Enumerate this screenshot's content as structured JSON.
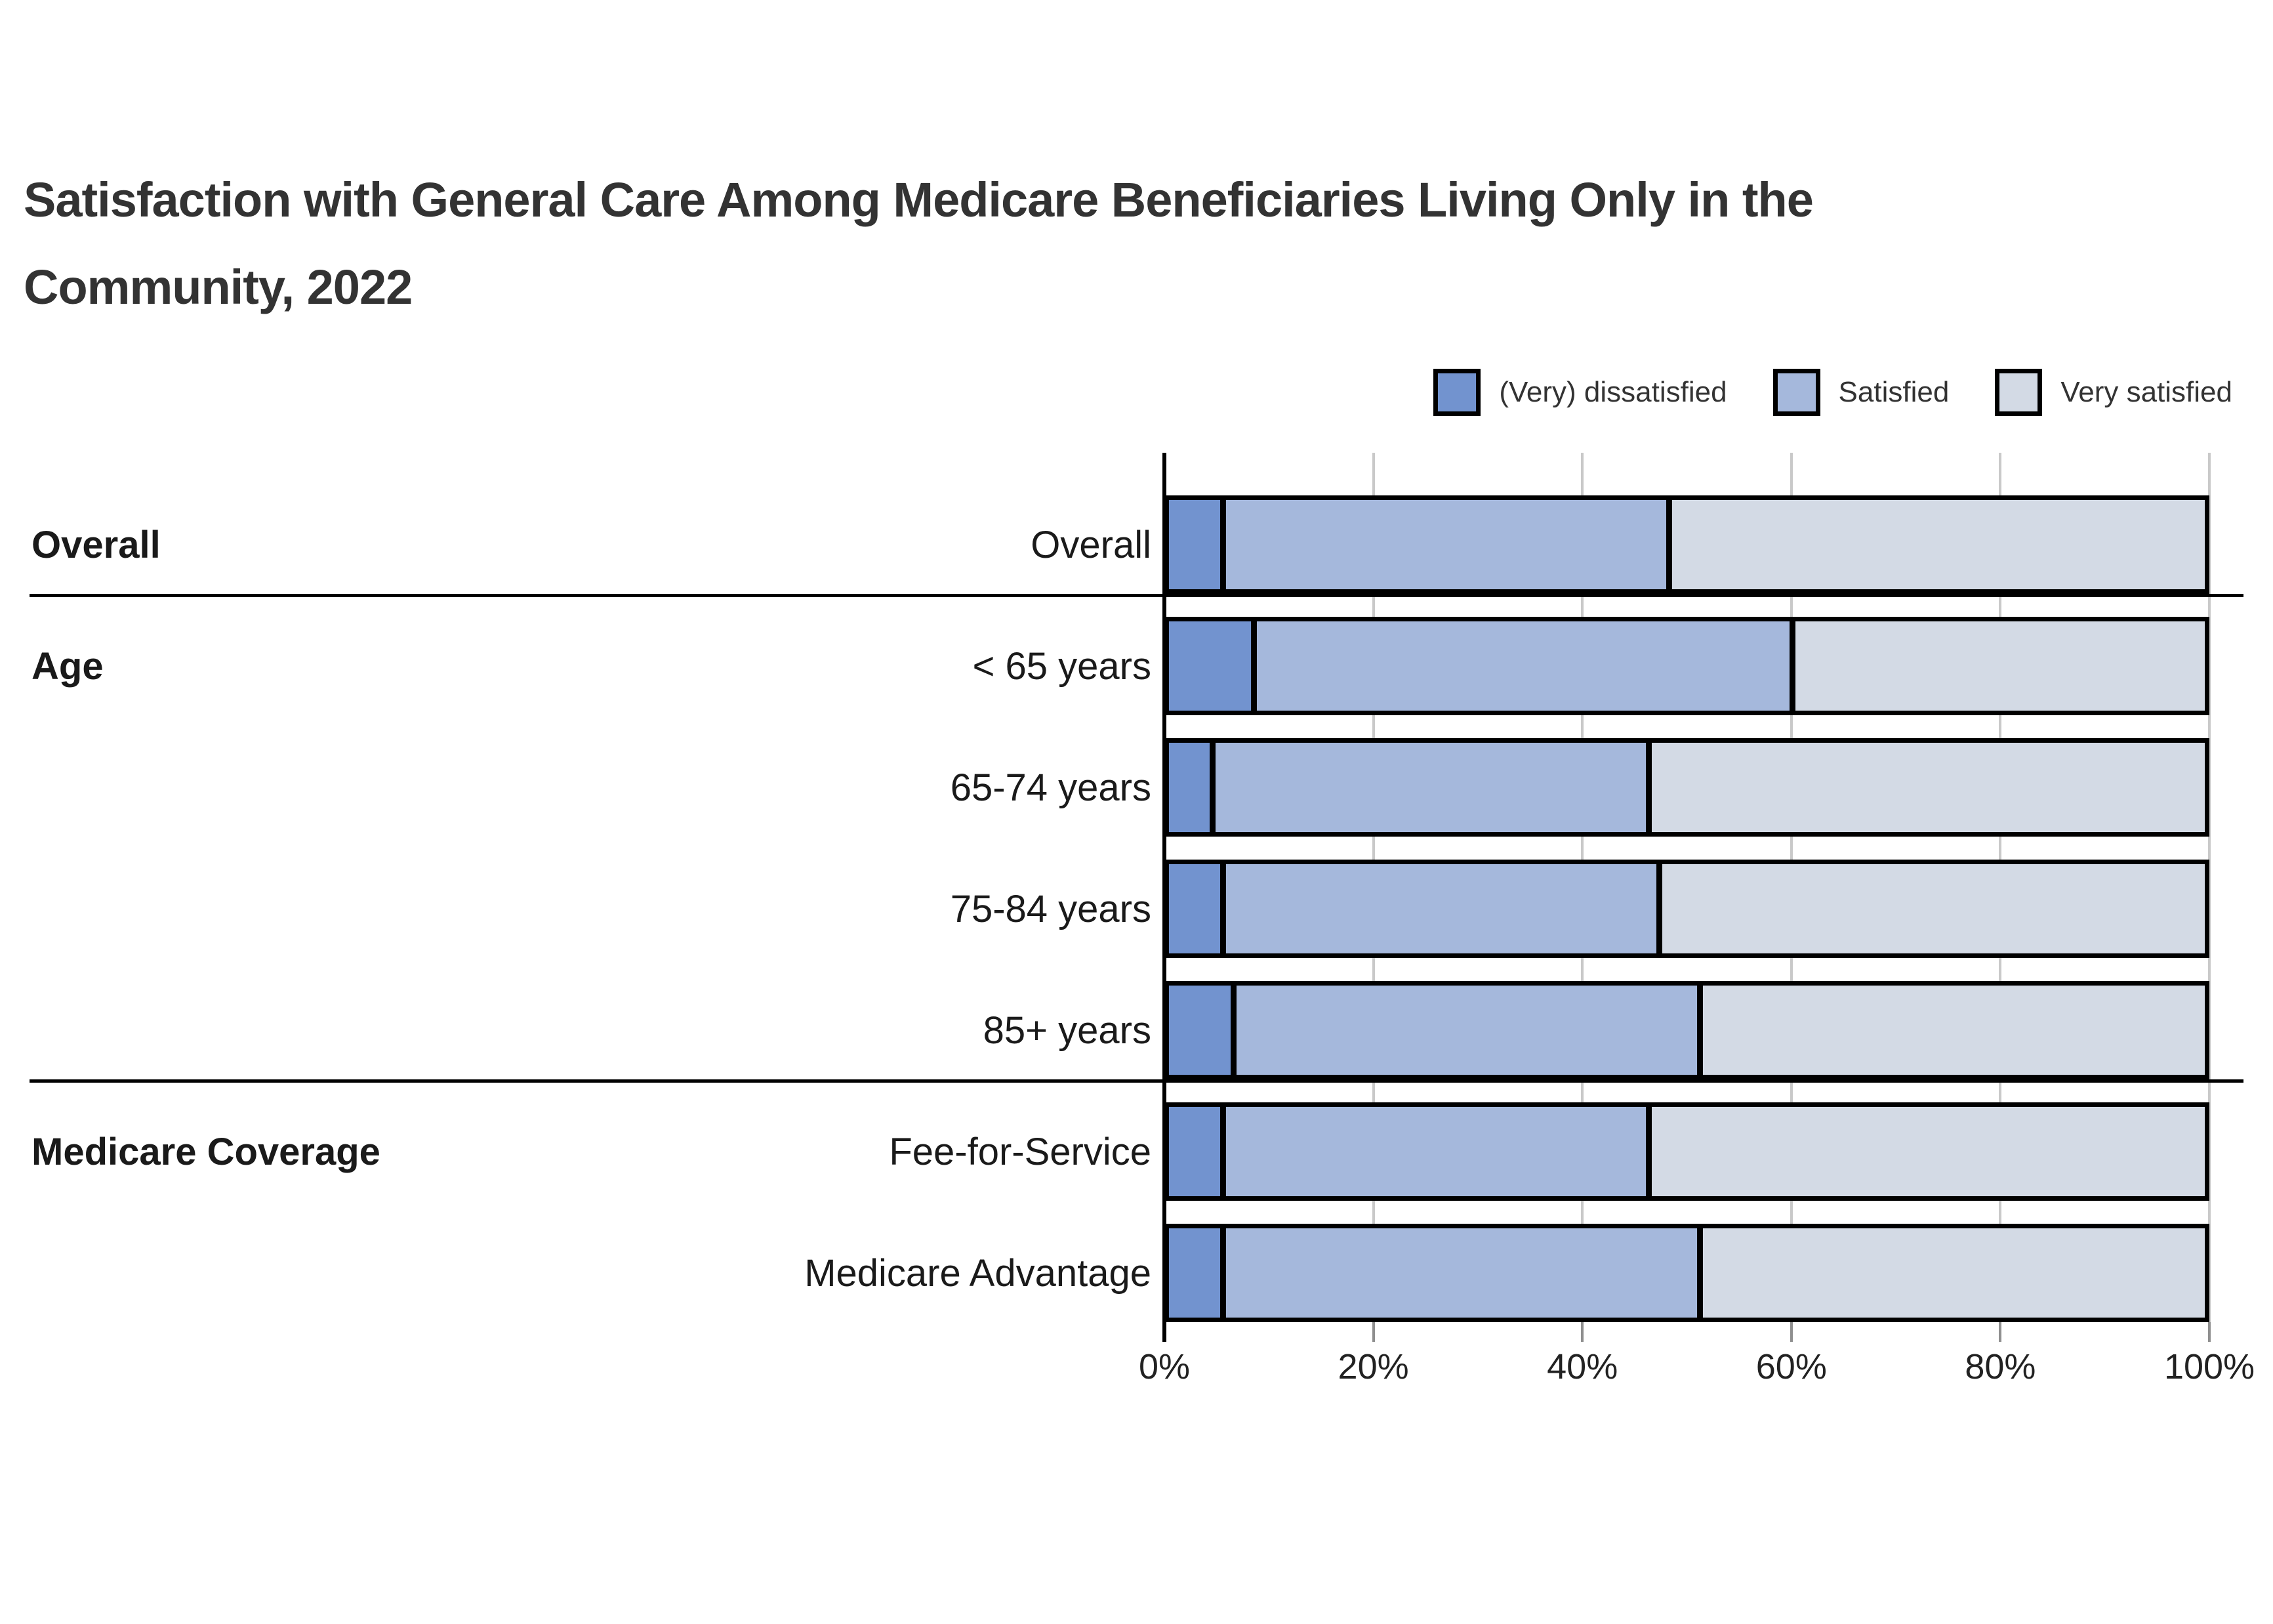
{
  "title": "Satisfaction with General Care Among Medicare Beneficiaries Living Only in the Community, 2022",
  "colors": {
    "dissatisfied": "#7293cf",
    "satisfied": "#a5b8dc",
    "very_satisfied": "#d3dae5",
    "bar_border": "#000000",
    "gridline": "#c9c9c9",
    "text": "#333333"
  },
  "legend": [
    {
      "label": "(Very) dissatisfied",
      "color": "#7293cf"
    },
    {
      "label": "Satisfied",
      "color": "#a5b8dc"
    },
    {
      "label": "Very satisfied",
      "color": "#d3dae5"
    }
  ],
  "chart_data": {
    "type": "bar",
    "orientation": "horizontal",
    "stacked": true,
    "unit": "percent",
    "title": "Satisfaction with General Care Among Medicare Beneficiaries Living Only in the Community, 2022",
    "xlim": [
      0,
      100
    ],
    "x_ticks": [
      "0%",
      "20%",
      "40%",
      "60%",
      "80%",
      "100%"
    ],
    "x_tick_values": [
      0,
      20,
      40,
      60,
      80,
      100
    ],
    "grid": true,
    "legend_position": "top-right",
    "categories": [
      "Overall",
      "< 65 years",
      "65-74 years",
      "75-84 years",
      "85+ years",
      "Fee-for-Service",
      "Medicare Advantage"
    ],
    "groups": [
      {
        "label": "Overall",
        "start_row": 0,
        "rows": [
          "Overall"
        ]
      },
      {
        "label": "Age",
        "start_row": 1,
        "rows": [
          "< 65 years",
          "65-74 years",
          "75-84 years",
          "85+ years"
        ]
      },
      {
        "label": "Medicare Coverage",
        "start_row": 5,
        "rows": [
          "Fee-for-Service",
          "Medicare Advantage"
        ]
      }
    ],
    "series": [
      {
        "name": "(Very) dissatisfied",
        "color": "#7293cf",
        "values": [
          5,
          8,
          4,
          5,
          6,
          5,
          5
        ]
      },
      {
        "name": "Satisfied",
        "color": "#a5b8dc",
        "values": [
          43,
          52,
          42,
          42,
          45,
          41,
          46
        ]
      },
      {
        "name": "Very satisfied",
        "color": "#d3dae5",
        "values": [
          52,
          40,
          54,
          53,
          49,
          54,
          49
        ]
      }
    ]
  }
}
